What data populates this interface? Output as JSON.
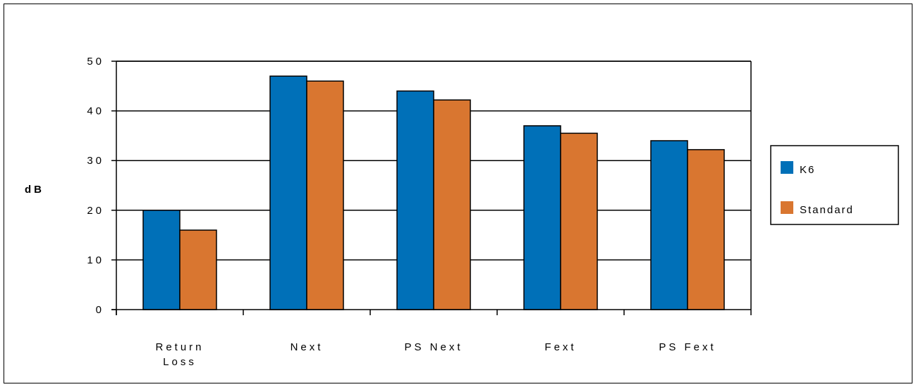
{
  "chart_data": {
    "type": "bar",
    "title": "",
    "xlabel": "",
    "ylabel": "dB",
    "ylim": [
      0,
      50
    ],
    "yticks": [
      0,
      10,
      20,
      30,
      40,
      50
    ],
    "grid": true,
    "legend_position": "right",
    "categories": [
      [
        "Return",
        "Loss"
      ],
      [
        "Next"
      ],
      [
        "PS Next"
      ],
      [
        "Fext"
      ],
      [
        "PS Fext"
      ]
    ],
    "series": [
      {
        "name": "K6",
        "color": "#0070b8",
        "values": [
          20,
          47,
          44,
          37,
          34
        ]
      },
      {
        "name": "Standard",
        "color": "#d97630",
        "values": [
          16,
          46,
          42.2,
          35.5,
          32.2
        ]
      }
    ]
  }
}
